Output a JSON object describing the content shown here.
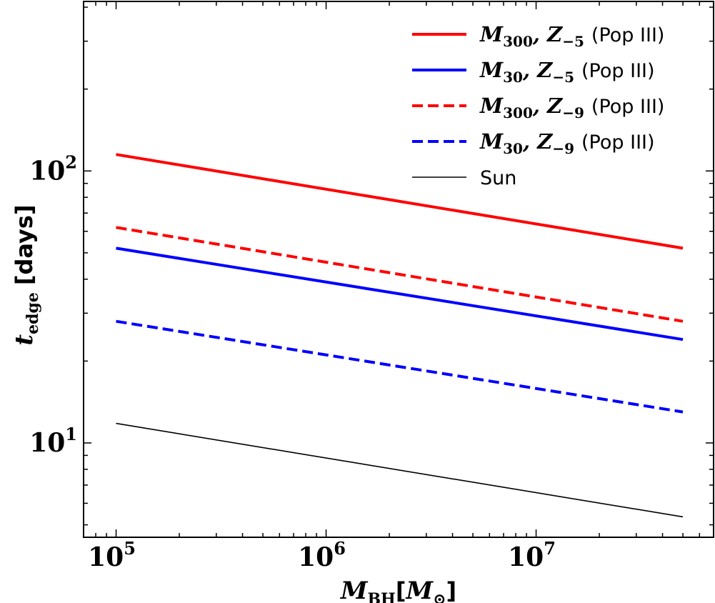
{
  "chart_data": {
    "type": "line",
    "x_scale": "log",
    "y_scale": "log",
    "xlabel": {
      "symbol": "M",
      "subscript": "BH",
      "unit_open": "[",
      "unit_symbol": "M",
      "unit_subscript": "⊙",
      "unit_close": "]"
    },
    "ylabel": {
      "symbol": "t",
      "subscript": "edge",
      "unit": "[days]"
    },
    "xlim": [
      70000,
      70000000
    ],
    "ylim": [
      4.5,
      420
    ],
    "x_ticks": [
      {
        "value": 100000,
        "base": "10",
        "exp": "5"
      },
      {
        "value": 1000000,
        "base": "10",
        "exp": "6"
      },
      {
        "value": 10000000,
        "base": "10",
        "exp": "7"
      }
    ],
    "y_ticks": [
      {
        "value": 10,
        "base": "10",
        "exp": "1"
      },
      {
        "value": 100,
        "base": "10",
        "exp": "2"
      }
    ],
    "x": [
      100000,
      50000000
    ],
    "series": [
      {
        "id": "m300-z5",
        "symbol": "M",
        "sub1": "300",
        "symbol2": "Z",
        "sub2": "−5",
        "suffix": "(Pop III)",
        "color": "#ff0000",
        "dash": "solid",
        "width": 4,
        "values": [
          115,
          52
        ]
      },
      {
        "id": "m30-z5",
        "symbol": "M",
        "sub1": "30",
        "symbol2": "Z",
        "sub2": "−5",
        "suffix": "(Pop III)",
        "color": "#0000ff",
        "dash": "solid",
        "width": 4,
        "values": [
          52,
          24
        ]
      },
      {
        "id": "m300-z9",
        "symbol": "M",
        "sub1": "300",
        "symbol2": "Z",
        "sub2": "−9",
        "suffix": "(Pop III)",
        "color": "#ff0000",
        "dash": "dashed",
        "width": 4,
        "values": [
          62,
          28
        ]
      },
      {
        "id": "m30-z9",
        "symbol": "M",
        "sub1": "30",
        "symbol2": "Z",
        "sub2": "−9",
        "suffix": "(Pop III)",
        "color": "#0000ff",
        "dash": "dashed",
        "width": 4,
        "values": [
          28,
          13
        ]
      },
      {
        "id": "sun",
        "label": "Sun",
        "color": "#000000",
        "dash": "solid",
        "width": 1.6,
        "values": [
          11.8,
          5.35
        ]
      }
    ],
    "legend_position": "top-right",
    "grid": false
  }
}
